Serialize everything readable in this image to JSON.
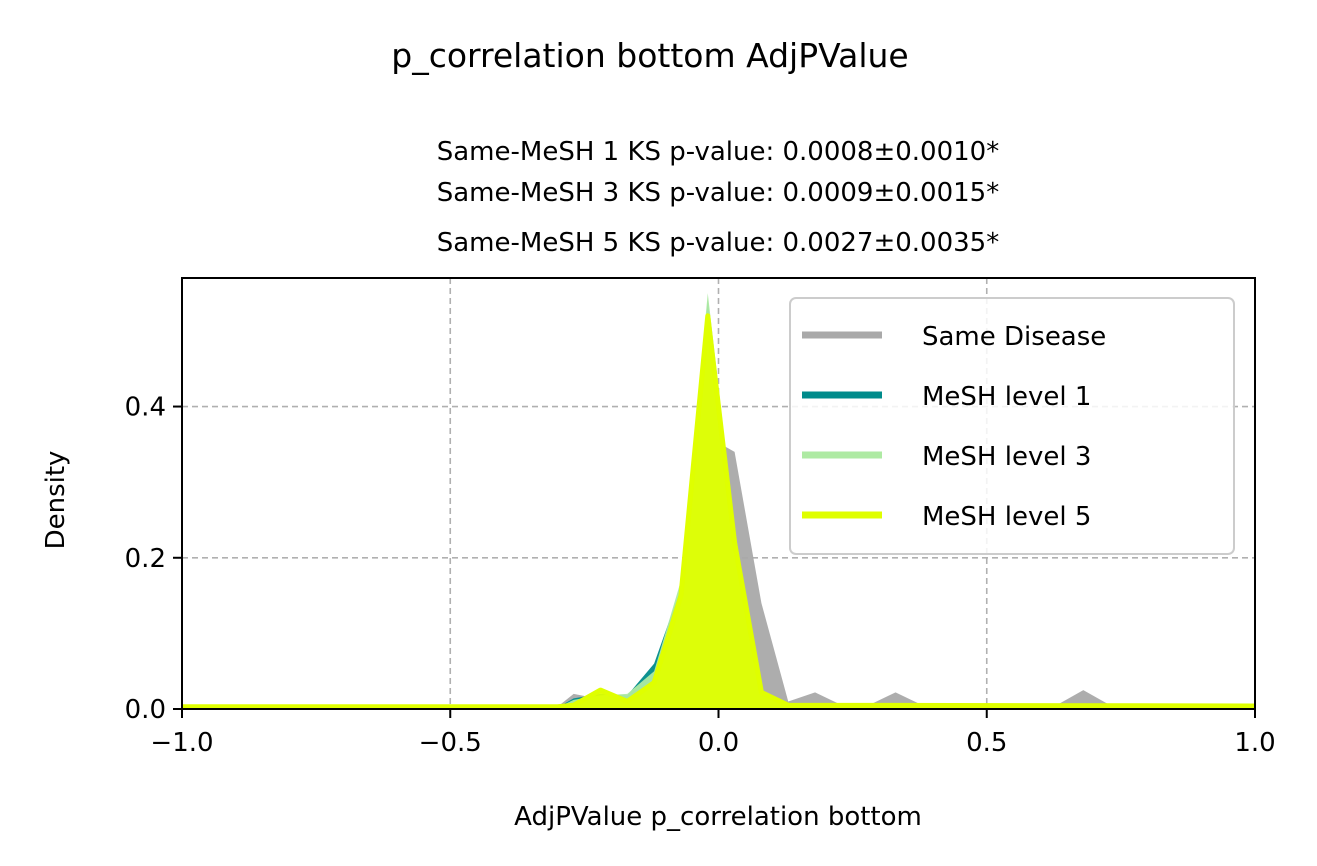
{
  "chart_data": {
    "type": "area",
    "suptitle": "p_correlation bottom AdjPValue",
    "subtitle_lines": [
      "Same-MeSH 1 KS p-value: 0.0008±0.0010*",
      "Same-MeSH 3 KS p-value: 0.0009±0.0015*",
      "Same-MeSH 5 KS p-value: 0.0027±0.0035*"
    ],
    "xlabel": "AdjPValue p_correlation bottom",
    "ylabel": "Density",
    "xlim": [
      -1.0,
      1.0
    ],
    "ylim": [
      0.0,
      0.57
    ],
    "xticks": [
      -1.0,
      -0.5,
      0.0,
      0.5,
      1.0
    ],
    "xtick_labels": [
      "−1.0",
      "−0.5",
      "0.0",
      "0.5",
      "1.0"
    ],
    "yticks": [
      0.0,
      0.2,
      0.4
    ],
    "ytick_labels": [
      "0.0",
      "0.2",
      "0.4"
    ],
    "grid": true,
    "legend_position": "top-right",
    "series": [
      {
        "name": "Same Disease",
        "color": "#a9a9a9",
        "filled": true,
        "line_visible": false,
        "x": [
          -1.0,
          -0.3,
          -0.27,
          -0.22,
          -0.17,
          -0.12,
          -0.07,
          -0.02,
          0.03,
          0.08,
          0.13,
          0.18,
          0.23,
          0.28,
          0.33,
          0.38,
          0.63,
          0.68,
          0.73,
          1.0
        ],
        "values": [
          0.003,
          0.003,
          0.02,
          0.013,
          0.012,
          0.03,
          0.08,
          0.36,
          0.34,
          0.14,
          0.01,
          0.022,
          0.005,
          0.005,
          0.022,
          0.005,
          0.005,
          0.025,
          0.005,
          0.005
        ]
      },
      {
        "name": "MeSH level 1",
        "color": "#008b8b",
        "filled": true,
        "line_visible": false,
        "x": [
          -1.0,
          -0.3,
          -0.27,
          -0.22,
          -0.17,
          -0.12,
          -0.07,
          -0.02,
          0.03,
          0.08,
          0.13,
          1.0
        ],
        "values": [
          0.002,
          0.002,
          0.014,
          0.02,
          0.018,
          0.06,
          0.16,
          0.54,
          0.21,
          0.018,
          0.003,
          0.003
        ]
      },
      {
        "name": "MeSH level 3",
        "color": "#aeeaa3",
        "filled": true,
        "line_visible": false,
        "x": [
          -1.0,
          -0.3,
          -0.27,
          -0.22,
          -0.17,
          -0.12,
          -0.07,
          -0.02,
          0.03,
          0.08,
          0.13,
          1.0
        ],
        "values": [
          0.002,
          0.002,
          0.012,
          0.018,
          0.02,
          0.05,
          0.17,
          0.55,
          0.24,
          0.02,
          0.004,
          0.003
        ]
      },
      {
        "name": "MeSH level 5",
        "color": "#dfff00",
        "filled": true,
        "line_visible": true,
        "x": [
          -1.0,
          -0.3,
          -0.27,
          -0.22,
          -0.17,
          -0.12,
          -0.07,
          -0.02,
          0.03,
          0.08,
          0.13,
          1.0
        ],
        "values": [
          0.003,
          0.003,
          0.005,
          0.025,
          0.01,
          0.035,
          0.15,
          0.52,
          0.22,
          0.022,
          0.005,
          0.004
        ]
      }
    ]
  }
}
